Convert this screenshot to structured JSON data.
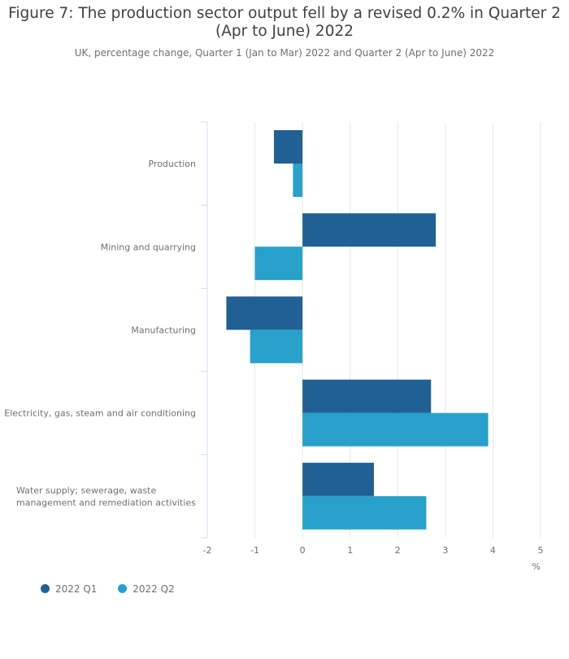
{
  "title": "Figure 7: The production sector output fell by a revised 0.2% in Quarter 2 (Apr to June) 2022",
  "subtitle": "UK, percentage change, Quarter 1 (Jan to Mar) 2022 and Quarter 2 (Apr to June) 2022",
  "colors": {
    "q1": "#206095",
    "q2": "#27a0cc",
    "grid": "#e6e6e6",
    "axis": "#d0dff0",
    "text": "#707071"
  },
  "chart_data": {
    "type": "bar",
    "orientation": "horizontal",
    "categories": [
      "Production",
      "Mining and quarrying",
      "Manufacturing",
      "Electricity, gas, steam and air conditioning",
      "Water supply; sewerage, waste management and remediation activities"
    ],
    "category_lines": [
      [
        "Production"
      ],
      [
        "Mining and quarrying"
      ],
      [
        "Manufacturing"
      ],
      [
        "Electricity, gas, steam and air conditioning"
      ],
      [
        "Water supply; sewerage, waste",
        "management and remediation activities"
      ]
    ],
    "series": [
      {
        "name": "2022 Q1",
        "values": [
          -0.6,
          2.8,
          -1.6,
          2.7,
          1.5
        ]
      },
      {
        "name": "2022 Q2",
        "values": [
          -0.2,
          -1.0,
          -1.1,
          3.9,
          2.6
        ]
      }
    ],
    "xlim": [
      -2,
      5
    ],
    "xticks": [
      "-2",
      "-1",
      "0",
      "1",
      "2",
      "3",
      "4",
      "5"
    ],
    "xlabel": "%",
    "legend_position": "bottom-left"
  }
}
